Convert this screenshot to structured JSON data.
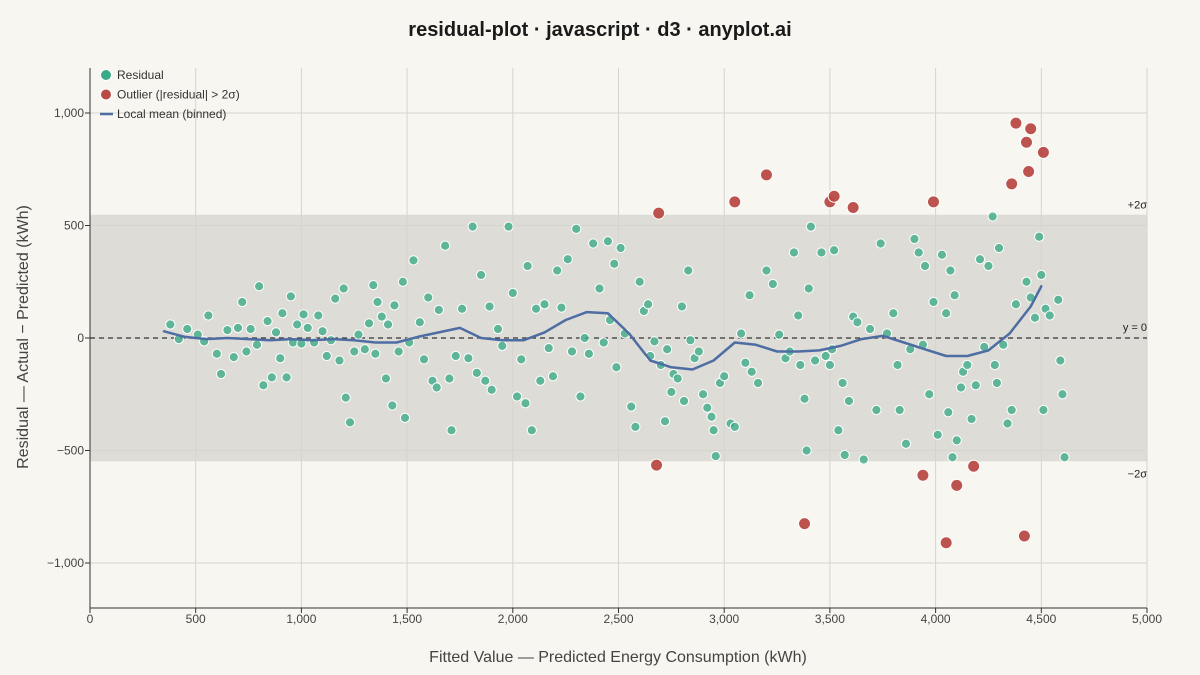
{
  "colors": {
    "background": "#f8f6f0",
    "residual": "#3aaa86",
    "outlier": "#b84a45",
    "local_mean": "#4e6da3",
    "band": "#dedcd6",
    "zero_line": "#333333"
  },
  "chart_data": {
    "type": "scatter",
    "title": "residual-plot · javascript · d3 · anyplot.ai",
    "xlabel": "Fitted Value — Predicted Energy Consumption (kWh)",
    "ylabel": "Residual — Actual − Predicted (kWh)",
    "xlim": [
      0,
      5000
    ],
    "ylim": [
      -1200,
      1200
    ],
    "xticks": [
      0,
      500,
      1000,
      1500,
      2000,
      2500,
      3000,
      3500,
      4000,
      4500,
      5000
    ],
    "xtick_labels": [
      "0",
      "500",
      "1,000",
      "1,500",
      "2,000",
      "2,500",
      "3,000",
      "3,500",
      "4,000",
      "4,500",
      "5,000"
    ],
    "yticks": [
      -1000,
      -500,
      0,
      500,
      1000
    ],
    "ytick_labels": [
      "−1,000",
      "−500",
      "0",
      "500",
      "1,000"
    ],
    "grid": true,
    "legend_position": "top-left",
    "sigma_band": [
      -548,
      548
    ],
    "band_labels": {
      "upper": "+2σ",
      "lower": "−2σ",
      "zero": "y = 0"
    },
    "legend": [
      {
        "label": "Residual",
        "kind": "dot",
        "color": "#3aaa86"
      },
      {
        "label": "Outlier (|residual| > 2σ)",
        "kind": "dot",
        "color": "#b84a45"
      },
      {
        "label": "Local mean (binned)",
        "kind": "line",
        "color": "#4e6da3"
      }
    ],
    "series": [
      {
        "name": "Residual",
        "points": [
          [
            380,
            60
          ],
          [
            420,
            -5
          ],
          [
            460,
            40
          ],
          [
            510,
            15
          ],
          [
            540,
            -15
          ],
          [
            560,
            100
          ],
          [
            600,
            -70
          ],
          [
            620,
            -160
          ],
          [
            650,
            35
          ],
          [
            680,
            -85
          ],
          [
            700,
            45
          ],
          [
            720,
            160
          ],
          [
            740,
            -60
          ],
          [
            760,
            40
          ],
          [
            790,
            -30
          ],
          [
            800,
            230
          ],
          [
            820,
            -210
          ],
          [
            840,
            75
          ],
          [
            860,
            -175
          ],
          [
            880,
            25
          ],
          [
            900,
            -90
          ],
          [
            910,
            110
          ],
          [
            930,
            -175
          ],
          [
            950,
            185
          ],
          [
            960,
            -20
          ],
          [
            980,
            60
          ],
          [
            1000,
            -25
          ],
          [
            1010,
            105
          ],
          [
            1030,
            45
          ],
          [
            1060,
            -20
          ],
          [
            1080,
            100
          ],
          [
            1100,
            30
          ],
          [
            1120,
            -80
          ],
          [
            1140,
            -10
          ],
          [
            1160,
            175
          ],
          [
            1180,
            -100
          ],
          [
            1200,
            220
          ],
          [
            1210,
            -265
          ],
          [
            1230,
            -375
          ],
          [
            1250,
            -60
          ],
          [
            1270,
            15
          ],
          [
            1300,
            -50
          ],
          [
            1320,
            65
          ],
          [
            1340,
            235
          ],
          [
            1350,
            -70
          ],
          [
            1360,
            160
          ],
          [
            1380,
            95
          ],
          [
            1400,
            -180
          ],
          [
            1410,
            60
          ],
          [
            1430,
            -300
          ],
          [
            1440,
            145
          ],
          [
            1460,
            -60
          ],
          [
            1480,
            250
          ],
          [
            1490,
            -355
          ],
          [
            1510,
            -20
          ],
          [
            1530,
            345
          ],
          [
            1560,
            70
          ],
          [
            1580,
            -95
          ],
          [
            1600,
            180
          ],
          [
            1620,
            -190
          ],
          [
            1640,
            -220
          ],
          [
            1650,
            125
          ],
          [
            1680,
            410
          ],
          [
            1700,
            -180
          ],
          [
            1710,
            -410
          ],
          [
            1730,
            -80
          ],
          [
            1760,
            130
          ],
          [
            1790,
            -90
          ],
          [
            1810,
            495
          ],
          [
            1830,
            -155
          ],
          [
            1850,
            280
          ],
          [
            1870,
            -190
          ],
          [
            1890,
            140
          ],
          [
            1900,
            -230
          ],
          [
            1930,
            40
          ],
          [
            1950,
            -35
          ],
          [
            1980,
            495
          ],
          [
            2000,
            200
          ],
          [
            2020,
            -260
          ],
          [
            2040,
            -95
          ],
          [
            2060,
            -290
          ],
          [
            2070,
            320
          ],
          [
            2090,
            -410
          ],
          [
            2110,
            130
          ],
          [
            2130,
            -190
          ],
          [
            2150,
            150
          ],
          [
            2170,
            -45
          ],
          [
            2190,
            -170
          ],
          [
            2210,
            300
          ],
          [
            2230,
            135
          ],
          [
            2260,
            350
          ],
          [
            2280,
            -60
          ],
          [
            2300,
            485
          ],
          [
            2320,
            -260
          ],
          [
            2340,
            0
          ],
          [
            2360,
            -70
          ],
          [
            2380,
            420
          ],
          [
            2410,
            220
          ],
          [
            2430,
            -20
          ],
          [
            2450,
            430
          ],
          [
            2460,
            80
          ],
          [
            2480,
            330
          ],
          [
            2490,
            -130
          ],
          [
            2510,
            400
          ],
          [
            2530,
            20
          ],
          [
            2560,
            -305
          ],
          [
            2580,
            -395
          ],
          [
            2600,
            250
          ],
          [
            2620,
            120
          ],
          [
            2640,
            150
          ],
          [
            2650,
            -80
          ],
          [
            2670,
            -15
          ],
          [
            2700,
            -120
          ],
          [
            2720,
            -370
          ],
          [
            2730,
            -50
          ],
          [
            2750,
            -240
          ],
          [
            2760,
            -160
          ],
          [
            2780,
            -180
          ],
          [
            2800,
            140
          ],
          [
            2810,
            -280
          ],
          [
            2830,
            300
          ],
          [
            2840,
            -10
          ],
          [
            2860,
            -90
          ],
          [
            2880,
            -60
          ],
          [
            2900,
            -250
          ],
          [
            2920,
            -310
          ],
          [
            2940,
            -350
          ],
          [
            2950,
            -410
          ],
          [
            2960,
            -525
          ],
          [
            2980,
            -200
          ],
          [
            3000,
            -170
          ],
          [
            3030,
            -380
          ],
          [
            3050,
            -395
          ],
          [
            3080,
            20
          ],
          [
            3100,
            -110
          ],
          [
            3120,
            190
          ],
          [
            3130,
            -150
          ],
          [
            3160,
            -200
          ],
          [
            3200,
            300
          ],
          [
            3230,
            240
          ],
          [
            3260,
            15
          ],
          [
            3290,
            -90
          ],
          [
            3310,
            -60
          ],
          [
            3330,
            380
          ],
          [
            3350,
            100
          ],
          [
            3360,
            -120
          ],
          [
            3380,
            -270
          ],
          [
            3390,
            -500
          ],
          [
            3400,
            220
          ],
          [
            3410,
            495
          ],
          [
            3430,
            -100
          ],
          [
            3460,
            380
          ],
          [
            3480,
            -80
          ],
          [
            3500,
            -120
          ],
          [
            3510,
            -50
          ],
          [
            3520,
            390
          ],
          [
            3540,
            -410
          ],
          [
            3560,
            -200
          ],
          [
            3570,
            -520
          ],
          [
            3590,
            -280
          ],
          [
            3610,
            95
          ],
          [
            3630,
            70
          ],
          [
            3660,
            -540
          ],
          [
            3690,
            40
          ],
          [
            3720,
            -320
          ],
          [
            3740,
            420
          ],
          [
            3770,
            20
          ],
          [
            3800,
            110
          ],
          [
            3820,
            -120
          ],
          [
            3830,
            -320
          ],
          [
            3860,
            -470
          ],
          [
            3880,
            -50
          ],
          [
            3900,
            440
          ],
          [
            3920,
            380
          ],
          [
            3940,
            -30
          ],
          [
            3950,
            320
          ],
          [
            3970,
            -250
          ],
          [
            3990,
            160
          ],
          [
            4010,
            -430
          ],
          [
            4030,
            370
          ],
          [
            4050,
            110
          ],
          [
            4060,
            -330
          ],
          [
            4070,
            300
          ],
          [
            4080,
            -530
          ],
          [
            4090,
            190
          ],
          [
            4100,
            -455
          ],
          [
            4120,
            -220
          ],
          [
            4130,
            -150
          ],
          [
            4150,
            -120
          ],
          [
            4170,
            -360
          ],
          [
            4190,
            -210
          ],
          [
            4210,
            350
          ],
          [
            4230,
            -40
          ],
          [
            4250,
            320
          ],
          [
            4270,
            540
          ],
          [
            4280,
            -120
          ],
          [
            4290,
            -200
          ],
          [
            4300,
            400
          ],
          [
            4320,
            -30
          ],
          [
            4340,
            -380
          ],
          [
            4360,
            -320
          ],
          [
            4380,
            150
          ],
          [
            4430,
            250
          ],
          [
            4450,
            180
          ],
          [
            4470,
            90
          ],
          [
            4490,
            450
          ],
          [
            4500,
            280
          ],
          [
            4510,
            -320
          ],
          [
            4520,
            130
          ],
          [
            4540,
            100
          ],
          [
            4580,
            170
          ],
          [
            4590,
            -100
          ],
          [
            4600,
            -250
          ],
          [
            4610,
            -530
          ]
        ]
      },
      {
        "name": "Outlier (|residual| > 2σ)",
        "points": [
          [
            2690,
            555
          ],
          [
            2680,
            -565
          ],
          [
            3050,
            605
          ],
          [
            3200,
            725
          ],
          [
            3380,
            -825
          ],
          [
            3500,
            605
          ],
          [
            3520,
            630
          ],
          [
            3610,
            580
          ],
          [
            3940,
            -610
          ],
          [
            3990,
            605
          ],
          [
            4050,
            -910
          ],
          [
            4100,
            -655
          ],
          [
            4180,
            -570
          ],
          [
            4360,
            685
          ],
          [
            4380,
            955
          ],
          [
            4420,
            -880
          ],
          [
            4430,
            870
          ],
          [
            4440,
            740
          ],
          [
            4450,
            930
          ],
          [
            4510,
            825
          ]
        ]
      }
    ],
    "local_mean": {
      "x": [
        350,
        450,
        550,
        650,
        750,
        850,
        950,
        1050,
        1150,
        1250,
        1350,
        1450,
        1550,
        1650,
        1750,
        1850,
        1950,
        2050,
        2150,
        2250,
        2350,
        2450,
        2550,
        2650,
        2750,
        2850,
        2950,
        3050,
        3150,
        3250,
        3350,
        3450,
        3550,
        3650,
        3750,
        3850,
        3950,
        4050,
        4150,
        4250,
        4350,
        4450,
        4500
      ],
      "y": [
        30,
        5,
        -5,
        0,
        -5,
        -10,
        -5,
        -10,
        -5,
        -10,
        -20,
        -20,
        5,
        25,
        45,
        0,
        -10,
        -10,
        25,
        80,
        115,
        110,
        20,
        -100,
        -130,
        -140,
        -100,
        -20,
        -30,
        -60,
        -60,
        -55,
        -35,
        -5,
        10,
        -20,
        -50,
        -80,
        -80,
        -55,
        20,
        140,
        230
      ]
    }
  }
}
